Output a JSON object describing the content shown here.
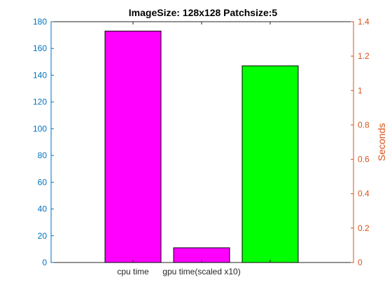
{
  "chart_data": {
    "type": "bar",
    "title": "ImageSize: 128x128 Patchsize:5",
    "categories": [
      "cpu time",
      "gpu time(scaled x10)",
      ""
    ],
    "x_tick_labels": [
      "cpu time",
      "gpu time(scaled x10)"
    ],
    "bars": [
      {
        "value": 173,
        "color": "#FF00FF"
      },
      {
        "value": 11,
        "color": "#FF00FF"
      },
      {
        "value": 147,
        "color": "#00FF00"
      }
    ],
    "left_axis": {
      "ylim": [
        0,
        180
      ],
      "ticks": [
        "0",
        "20",
        "40",
        "60",
        "80",
        "100",
        "120",
        "140",
        "160",
        "180"
      ],
      "color": "#0072BD",
      "label": ""
    },
    "right_axis": {
      "ylim": [
        0,
        1.4
      ],
      "ticks": [
        "0",
        "0.2",
        "0.4",
        "0.6",
        "0.8",
        "1",
        "1.2",
        "1.4"
      ],
      "color": "#D95319",
      "label": "Seconds"
    },
    "grid": false,
    "legend": "none"
  }
}
